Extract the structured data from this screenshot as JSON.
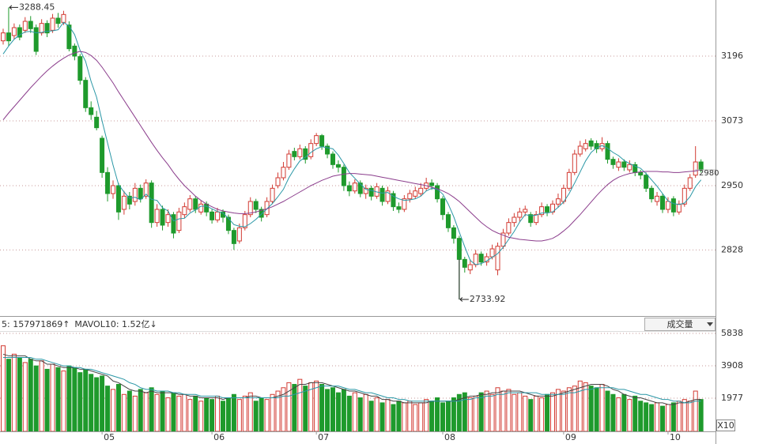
{
  "chart_data": {
    "type": "candlestick",
    "categories": [
      null,
      null,
      null,
      null,
      null,
      null,
      null,
      null,
      null,
      null,
      null,
      null,
      null,
      null,
      null,
      null,
      null,
      null,
      "05",
      null,
      null,
      null,
      null,
      null,
      null,
      null,
      null,
      null,
      null,
      null,
      null,
      null,
      null,
      null,
      null,
      null,
      null,
      null,
      "06",
      null,
      null,
      null,
      null,
      null,
      null,
      null,
      null,
      null,
      null,
      null,
      null,
      null,
      null,
      null,
      null,
      null,
      null,
      "07",
      null,
      null,
      null,
      null,
      null,
      null,
      null,
      null,
      null,
      null,
      null,
      null,
      null,
      null,
      null,
      null,
      null,
      null,
      null,
      null,
      null,
      null,
      "08",
      null,
      null,
      null,
      null,
      null,
      null,
      null,
      null,
      null,
      null,
      null,
      null,
      null,
      null,
      null,
      null,
      null,
      null,
      null,
      null,
      null,
      "09",
      null,
      null,
      null,
      null,
      null,
      null,
      null,
      null,
      null,
      null,
      null,
      null,
      null,
      null,
      null,
      null,
      null,
      null,
      "10",
      null,
      null,
      null,
      null,
      null,
      null
    ],
    "open": [
      3225,
      3240,
      3235,
      3250,
      3245,
      3262,
      3250,
      3240,
      3258,
      3245,
      3268,
      3260,
      3255,
      3215,
      3195,
      3150,
      3098,
      3080,
      3040,
      2975,
      2935,
      2950,
      2905,
      2930,
      2920,
      2945,
      2930,
      2955,
      2880,
      2905,
      2880,
      2895,
      2865,
      2895,
      2905,
      2925,
      2900,
      2915,
      2900,
      2885,
      2900,
      2890,
      2865,
      2845,
      2870,
      2895,
      2920,
      2905,
      2895,
      2920,
      2950,
      2965,
      2985,
      3015,
      3005,
      3020,
      3005,
      3030,
      3045,
      3025,
      3010,
      2990,
      2985,
      2950,
      2940,
      2955,
      2935,
      2945,
      2930,
      2945,
      2920,
      2935,
      2910,
      2905,
      2925,
      2930,
      2935,
      2945,
      2955,
      2950,
      2925,
      2895,
      2870,
      2850,
      2810,
      2790,
      2800,
      2820,
      2805,
      2815,
      2790,
      2835,
      2860,
      2880,
      2890,
      2900,
      2895,
      2880,
      2895,
      2910,
      2900,
      2915,
      2920,
      2945,
      2975,
      3010,
      3020,
      3035,
      3030,
      3020,
      3030,
      3000,
      2985,
      2995,
      2980,
      2990,
      2975,
      2970,
      2945,
      2920,
      2930,
      2905,
      2925,
      2900,
      2915,
      2945,
      2970,
      2995
    ],
    "high": [
      3248,
      3288.45,
      3258,
      3256,
      3270,
      3272,
      3256,
      3266,
      3264,
      3276,
      3278,
      3282,
      3262,
      3220,
      3200,
      3156,
      3110,
      3092,
      3045,
      2985,
      2960,
      2955,
      2940,
      2938,
      2955,
      2952,
      2962,
      2960,
      2915,
      2912,
      2905,
      2900,
      2908,
      2918,
      2932,
      2930,
      2922,
      2920,
      2905,
      2908,
      2905,
      2895,
      2870,
      2878,
      2902,
      2928,
      2925,
      2910,
      2928,
      2952,
      2975,
      2995,
      3018,
      3022,
      3028,
      3025,
      3038,
      3050,
      3048,
      3030,
      3015,
      2998,
      2990,
      2958,
      2962,
      2960,
      2952,
      2950,
      2955,
      2950,
      2948,
      2940,
      2918,
      2932,
      2942,
      2948,
      2955,
      2965,
      2962,
      2955,
      2930,
      2900,
      2875,
      2855,
      2815,
      2810,
      2828,
      2825,
      2822,
      2838,
      2842,
      2868,
      2888,
      2898,
      2908,
      2912,
      2900,
      2902,
      2918,
      2915,
      2922,
      2935,
      2952,
      2982,
      3018,
      3035,
      3038,
      3040,
      3036,
      3042,
      3035,
      3005,
      3002,
      3000,
      2998,
      2995,
      2980,
      2975,
      2950,
      2938,
      2935,
      2928,
      2930,
      2922,
      2952,
      2972,
      3025,
      3000
    ],
    "low": [
      3218,
      3215,
      3228,
      3226,
      3240,
      3240,
      3198,
      3235,
      3232,
      3240,
      3250,
      3255,
      3205,
      3188,
      3142,
      3090,
      3075,
      3055,
      2965,
      2920,
      2925,
      2885,
      2895,
      2905,
      2912,
      2918,
      2925,
      2870,
      2872,
      2865,
      2872,
      2850,
      2860,
      2888,
      2900,
      2898,
      2895,
      2892,
      2878,
      2880,
      2880,
      2858,
      2828,
      2840,
      2865,
      2890,
      2898,
      2882,
      2890,
      2915,
      2945,
      2960,
      2980,
      2998,
      3000,
      2992,
      3000,
      3025,
      3018,
      3002,
      2982,
      2975,
      2940,
      2930,
      2935,
      2928,
      2925,
      2922,
      2925,
      2912,
      2915,
      2902,
      2898,
      2900,
      2918,
      2925,
      2930,
      2940,
      2942,
      2918,
      2885,
      2862,
      2840,
      2733.92,
      2785,
      2782,
      2795,
      2798,
      2798,
      2810,
      2780,
      2830,
      2855,
      2872,
      2882,
      2892,
      2872,
      2875,
      2890,
      2892,
      2895,
      2908,
      2915,
      2940,
      2970,
      3005,
      3015,
      3018,
      3012,
      3015,
      2992,
      2982,
      2978,
      2978,
      2975,
      2968,
      2962,
      2938,
      2918,
      2912,
      2898,
      2898,
      2892,
      2895,
      2910,
      2940,
      2965,
      2975
    ],
    "close": [
      3240,
      3225,
      3250,
      3232,
      3262,
      3248,
      3205,
      3258,
      3240,
      3268,
      3258,
      3275,
      3210,
      3196,
      3150,
      3098,
      3085,
      3060,
      2975,
      2935,
      2950,
      2900,
      2930,
      2915,
      2945,
      2925,
      2955,
      2880,
      2905,
      2875,
      2895,
      2860,
      2900,
      2910,
      2925,
      2905,
      2915,
      2900,
      2885,
      2900,
      2890,
      2865,
      2840,
      2870,
      2895,
      2920,
      2905,
      2890,
      2920,
      2945,
      2965,
      2985,
      3010,
      3005,
      3020,
      3000,
      3030,
      3045,
      3025,
      3010,
      2990,
      2985,
      2950,
      2940,
      2955,
      2935,
      2945,
      2930,
      2948,
      2920,
      2940,
      2910,
      2905,
      2925,
      2935,
      2940,
      2945,
      2955,
      2950,
      2925,
      2895,
      2870,
      2850,
      2810,
      2795,
      2800,
      2820,
      2805,
      2815,
      2830,
      2835,
      2860,
      2880,
      2890,
      2900,
      2905,
      2880,
      2895,
      2910,
      2900,
      2915,
      2925,
      2945,
      2975,
      3010,
      3025,
      3030,
      3025,
      3020,
      3030,
      3000,
      2990,
      2995,
      2985,
      2990,
      2975,
      2970,
      2945,
      2925,
      2930,
      2905,
      2920,
      2900,
      2915,
      2945,
      2965,
      2995,
      2980
    ],
    "up_color": "#d23a32",
    "down_color": "#1e9a2c",
    "ylim": [
      2702.5,
      3302.5
    ],
    "yticks": [
      3196,
      3073,
      2950,
      2828
    ],
    "grid": true,
    "series": [
      {
        "color": "#2a97a6",
        "values": [
          3200,
          3215,
          3228,
          3236,
          3242,
          3243,
          3240,
          3241,
          3243,
          3244,
          3246,
          3260,
          3253,
          3237,
          3207,
          3186,
          3148,
          3118,
          3073,
          3031,
          2989,
          2952,
          2938,
          2926,
          2928,
          2923,
          2934,
          2924,
          2922,
          2908,
          2902,
          2883,
          2887,
          2888,
          2898,
          2904,
          2911,
          2911,
          2906,
          2901,
          2898,
          2888,
          2876,
          2873,
          2872,
          2878,
          2886,
          2896,
          2906,
          2916,
          2929,
          2943,
          2965,
          2982,
          2997,
          3004,
          3013,
          3020,
          3024,
          3022,
          3020,
          3008,
          2992,
          2975,
          2964,
          2953,
          2943,
          2941,
          2938,
          2936,
          2937,
          2930,
          2925,
          2922,
          2923,
          2925,
          2930,
          2940,
          2945,
          2943,
          2934,
          2915,
          2891,
          2862,
          2834,
          2808,
          2800,
          2802,
          2807,
          2814,
          2821,
          2833,
          2848,
          2863,
          2881,
          2895,
          2893,
          2894,
          2898,
          2898,
          2900,
          2909,
          2919,
          2935,
          2955,
          2976,
          2997,
          3013,
          3022,
          3026,
          3021,
          3013,
          3007,
          2998,
          2992,
          2987,
          2983,
          2973,
          2961,
          2949,
          2935,
          2921,
          2916,
          2914,
          2917,
          2929,
          2948,
          2961
        ]
      },
      {
        "color": "#8b3d8c",
        "values": [
          3075,
          3088,
          3100,
          3112,
          3124,
          3136,
          3147,
          3158,
          3168,
          3177,
          3185,
          3192,
          3198,
          3202,
          3205,
          3203,
          3197,
          3188,
          3175,
          3160,
          3145,
          3128,
          3112,
          3096,
          3080,
          3064,
          3048,
          3032,
          3017,
          3003,
          2990,
          2975,
          2962,
          2950,
          2940,
          2930,
          2922,
          2915,
          2910,
          2905,
          2902,
          2900,
          2898,
          2897,
          2897,
          2898,
          2900,
          2903,
          2906,
          2910,
          2915,
          2920,
          2926,
          2932,
          2938,
          2944,
          2950,
          2955,
          2960,
          2964,
          2968,
          2970,
          2972,
          2973,
          2973,
          2972,
          2971,
          2970,
          2968,
          2966,
          2964,
          2962,
          2960,
          2958,
          2956,
          2954,
          2952,
          2950,
          2947,
          2944,
          2940,
          2935,
          2928,
          2920,
          2910,
          2900,
          2890,
          2880,
          2872,
          2865,
          2860,
          2856,
          2852,
          2850,
          2848,
          2847,
          2846,
          2845,
          2845,
          2847,
          2850,
          2856,
          2864,
          2873,
          2884,
          2895,
          2907,
          2919,
          2931,
          2942,
          2952,
          2960,
          2966,
          2970,
          2973,
          2975,
          2976,
          2977,
          2977,
          2977,
          2976,
          2976,
          2975,
          2975,
          2976,
          2977,
          2978,
          2980
        ]
      }
    ],
    "volume": {
      "type": "bar",
      "values": [
        5100,
        4300,
        4600,
        4400,
        4100,
        4300,
        3900,
        4200,
        3700,
        4000,
        3800,
        3600,
        3900,
        3800,
        3500,
        3700,
        3400,
        3200,
        3300,
        2700,
        2500,
        2800,
        2200,
        2400,
        2100,
        2500,
        2300,
        2600,
        2200,
        2400,
        2000,
        2300,
        2100,
        2200,
        1900,
        2100,
        1800,
        2000,
        1900,
        2100,
        1800,
        2000,
        2200,
        1900,
        2100,
        2300,
        1800,
        2000,
        1900,
        2200,
        2400,
        2600,
        2900,
        2800,
        3100,
        2700,
        2900,
        3000,
        2800,
        2500,
        2600,
        2300,
        2500,
        2100,
        2300,
        2000,
        2200,
        1800,
        2000,
        1700,
        1900,
        1600,
        1800,
        1700,
        1800,
        1600,
        1700,
        1900,
        1800,
        2000,
        1700,
        1800,
        2000,
        2200,
        2300,
        2000,
        2100,
        2300,
        2400,
        2200,
        2600,
        2400,
        2500,
        2200,
        2300,
        2100,
        1900,
        2100,
        2000,
        2200,
        2300,
        2500,
        2400,
        2600,
        2700,
        3000,
        2900,
        2700,
        2600,
        2800,
        2400,
        2200,
        2000,
        2200,
        1900,
        2100,
        1800,
        1700,
        1600,
        1700,
        1500,
        1600,
        1700,
        1800,
        1900,
        1800,
        2400,
        1900
      ],
      "ylim": [
        0,
        6686
      ],
      "yticks": [
        5838,
        3908,
        1977
      ],
      "grid": true,
      "series": [
        {
          "color": "#444444",
          "values": [
            4600,
            4500,
            4500,
            4500,
            4500,
            4300,
            4200,
            4200,
            4000,
            4000,
            3900,
            3800,
            3800,
            3800,
            3700,
            3700,
            3600,
            3500,
            3400,
            3300,
            3000,
            2900,
            2700,
            2500,
            2400,
            2400,
            2300,
            2400,
            2300,
            2300,
            2300,
            2300,
            2200,
            2200,
            2100,
            2100,
            2000,
            2000,
            2000,
            2000,
            1900,
            2000,
            2000,
            2000,
            2000,
            2100,
            2100,
            2000,
            2000,
            2000,
            2100,
            2200,
            2400,
            2600,
            2800,
            2800,
            2900,
            2900,
            2900,
            2800,
            2700,
            2600,
            2500,
            2400,
            2400,
            2300,
            2200,
            2100,
            2100,
            1900,
            1900,
            1800,
            1800,
            1700,
            1700,
            1700,
            1700,
            1700,
            1800,
            1800,
            1800,
            1800,
            1800,
            1900,
            2000,
            2100,
            2100,
            2200,
            2200,
            2300,
            2300,
            2400,
            2400,
            2400,
            2400,
            2300,
            2200,
            2100,
            2100,
            2100,
            2100,
            2200,
            2300,
            2400,
            2500,
            2600,
            2700,
            2800,
            2800,
            2800,
            2700,
            2500,
            2400,
            2200,
            2100,
            2000,
            2000,
            1900,
            1800,
            1700,
            1700,
            1600,
            1600,
            1700,
            1700,
            1800,
            1900,
            1900
          ]
        },
        {
          "color": "#2a97a6",
          "values": [
            4400,
            4400,
            4400,
            4400,
            4400,
            4400,
            4300,
            4300,
            4200,
            4100,
            4000,
            3900,
            3900,
            3800,
            3800,
            3700,
            3700,
            3600,
            3500,
            3400,
            3300,
            3200,
            3100,
            2900,
            2800,
            2600,
            2500,
            2500,
            2400,
            2400,
            2400,
            2300,
            2300,
            2200,
            2200,
            2200,
            2100,
            2100,
            2100,
            2100,
            2000,
            2000,
            2000,
            2000,
            2000,
            2000,
            2000,
            2000,
            2000,
            2000,
            2000,
            2100,
            2100,
            2200,
            2300,
            2400,
            2500,
            2600,
            2700,
            2700,
            2700,
            2700,
            2600,
            2500,
            2500,
            2400,
            2300,
            2300,
            2200,
            2100,
            2000,
            2000,
            1900,
            1900,
            1800,
            1800,
            1800,
            1800,
            1800,
            1800,
            1800,
            1800,
            1800,
            1800,
            1900,
            1900,
            2000,
            2000,
            2100,
            2100,
            2200,
            2200,
            2300,
            2300,
            2300,
            2300,
            2300,
            2300,
            2200,
            2200,
            2200,
            2200,
            2200,
            2300,
            2300,
            2400,
            2500,
            2500,
            2600,
            2600,
            2600,
            2600,
            2500,
            2500,
            2400,
            2300,
            2200,
            2200,
            2100,
            2000,
            1900,
            1900,
            1800,
            1800,
            1700,
            1700,
            1800,
            1800
          ]
        }
      ],
      "header": [
        {
          "text": "5: 157971869↑",
          "color": "#c8362c"
        },
        {
          "text": "MAVOL10: 1.52亿↓",
          "color": "#2a97a6"
        }
      ],
      "selector": "成交量",
      "unit": "X10"
    }
  }
}
